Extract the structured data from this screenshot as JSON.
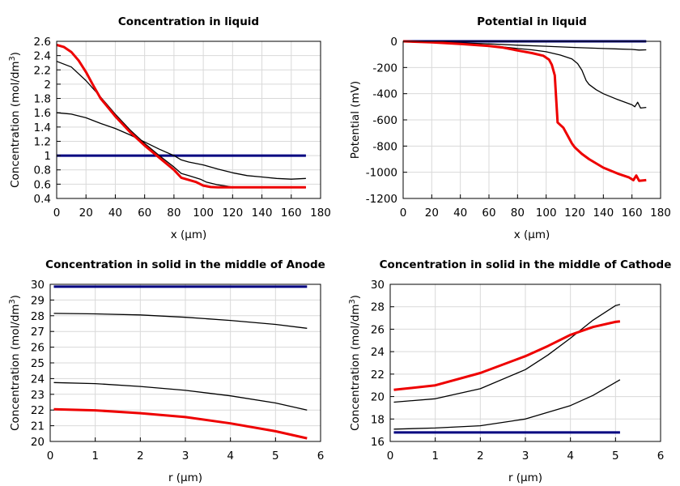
{
  "chart_data": [
    {
      "type": "line",
      "title": "Concentration in liquid",
      "xlabel": "x (µm)",
      "ylabel": "Concentration (mol/dm³)",
      "ylabel_main": "Concentration (mol/dm",
      "ylabel_sup": "3",
      "ylabel_end": ")",
      "xlim": [
        0,
        180
      ],
      "ylim": [
        0.4,
        2.6
      ],
      "xticks": [
        0,
        20,
        40,
        60,
        80,
        100,
        120,
        140,
        160,
        180
      ],
      "xtick_labels": [
        "0",
        "20",
        "40",
        "60",
        "80",
        "100",
        "120",
        "140",
        "160",
        "180"
      ],
      "yticks": [
        0.4,
        0.6,
        0.8,
        1,
        1.2,
        1.4,
        1.6,
        1.8,
        2,
        2.2,
        2.4,
        2.6
      ],
      "ytick_labels": [
        "0.4",
        "0.6",
        "0.8",
        "1",
        "1.2",
        "1.4",
        "1.6",
        "1.8",
        "2",
        "2.2",
        "2.4",
        "2.6"
      ],
      "grid": true,
      "series": [
        {
          "color": "#000080",
          "width": 3,
          "x": [
            0,
            170
          ],
          "y": [
            1.0,
            1.0
          ]
        },
        {
          "color": "#000000",
          "width": 1.3,
          "x": [
            0,
            10,
            20,
            30,
            40,
            50,
            60,
            70,
            80,
            85,
            90,
            100,
            110,
            120,
            130,
            140,
            150,
            160,
            170
          ],
          "y": [
            1.6,
            1.58,
            1.53,
            1.45,
            1.38,
            1.29,
            1.19,
            1.09,
            1.0,
            0.94,
            0.91,
            0.87,
            0.81,
            0.76,
            0.72,
            0.7,
            0.68,
            0.67,
            0.68
          ]
        },
        {
          "color": "#000000",
          "width": 1.3,
          "x": [
            0,
            10,
            20,
            30,
            40,
            50,
            60,
            70,
            80,
            85,
            90,
            98,
            102,
            110,
            120,
            130,
            140,
            150,
            160,
            170
          ],
          "y": [
            2.32,
            2.24,
            2.05,
            1.82,
            1.58,
            1.36,
            1.17,
            1.0,
            0.84,
            0.75,
            0.72,
            0.67,
            0.63,
            0.59,
            0.56,
            0.555,
            0.555,
            0.555,
            0.555,
            0.555
          ]
        },
        {
          "color": "#ee0000",
          "width": 3,
          "x": [
            0,
            5,
            10,
            15,
            20,
            25,
            30,
            40,
            50,
            60,
            70,
            80,
            85,
            95,
            100,
            105,
            110,
            120,
            130,
            140,
            150,
            160,
            170
          ],
          "y": [
            2.55,
            2.52,
            2.45,
            2.33,
            2.17,
            1.98,
            1.8,
            1.55,
            1.33,
            1.14,
            0.97,
            0.8,
            0.69,
            0.63,
            0.58,
            0.56,
            0.555,
            0.555,
            0.555,
            0.555,
            0.555,
            0.555,
            0.555
          ]
        }
      ]
    },
    {
      "type": "line",
      "title": "Potential in liquid",
      "xlabel": "x (µm)",
      "ylabel": "Potential (mV)",
      "ylabel_main": "Potential (mV)",
      "ylabel_sup": "",
      "ylabel_end": "",
      "xlim": [
        0,
        180
      ],
      "ylim": [
        -1200,
        0
      ],
      "xticks": [
        0,
        20,
        40,
        60,
        80,
        100,
        120,
        140,
        160,
        180
      ],
      "xtick_labels": [
        "0",
        "20",
        "40",
        "60",
        "80",
        "100",
        "120",
        "140",
        "160",
        "180"
      ],
      "yticks": [
        -1200,
        -1000,
        -800,
        -600,
        -400,
        -200,
        0
      ],
      "ytick_labels": [
        "-1200",
        "-1000",
        "-800",
        "-600",
        "-400",
        "-200",
        "0"
      ],
      "grid": true,
      "series": [
        {
          "color": "#000080",
          "width": 3,
          "x": [
            0,
            170
          ],
          "y": [
            0,
            0
          ]
        },
        {
          "color": "#000000",
          "width": 1.3,
          "x": [
            0,
            20,
            40,
            60,
            80,
            100,
            120,
            140,
            160,
            165,
            170
          ],
          "y": [
            0,
            -5,
            -12,
            -20,
            -30,
            -38,
            -47,
            -55,
            -62,
            -67,
            -65
          ]
        },
        {
          "color": "#000000",
          "width": 1.3,
          "x": [
            0,
            20,
            40,
            60,
            80,
            90,
            100,
            110,
            118,
            122,
            125,
            128,
            130,
            135,
            140,
            150,
            160,
            162,
            164,
            166,
            170
          ],
          "y": [
            0,
            -8,
            -18,
            -32,
            -55,
            -65,
            -80,
            -105,
            -135,
            -170,
            -220,
            -300,
            -330,
            -370,
            -400,
            -445,
            -485,
            -500,
            -465,
            -510,
            -505
          ]
        },
        {
          "color": "#ee0000",
          "width": 3,
          "x": [
            0,
            20,
            40,
            60,
            70,
            80,
            90,
            98,
            102,
            104,
            106,
            108,
            112,
            115,
            118,
            120,
            125,
            130,
            140,
            150,
            158,
            161,
            163,
            165,
            170
          ],
          "y": [
            0,
            -8,
            -20,
            -35,
            -48,
            -70,
            -90,
            -110,
            -140,
            -180,
            -260,
            -620,
            -660,
            -720,
            -780,
            -810,
            -860,
            -900,
            -965,
            -1010,
            -1040,
            -1060,
            -1025,
            -1065,
            -1060
          ]
        }
      ]
    },
    {
      "type": "line",
      "title": "Concentration in solid in the middle of Anode",
      "xlabel": "r (µm)",
      "ylabel": "Concentration (mol/dm³)",
      "ylabel_main": "Concentration (mol/dm",
      "ylabel_sup": "3",
      "ylabel_end": ")",
      "xlim": [
        0,
        6
      ],
      "ylim": [
        20,
        30
      ],
      "xticks": [
        0,
        1,
        2,
        3,
        4,
        5,
        6
      ],
      "xtick_labels": [
        "0",
        "1",
        "2",
        "3",
        "4",
        "5",
        "6"
      ],
      "yticks": [
        20,
        21,
        22,
        23,
        24,
        25,
        26,
        27,
        28,
        29,
        30
      ],
      "ytick_labels": [
        "20",
        "21",
        "22",
        "23",
        "24",
        "25",
        "26",
        "27",
        "28",
        "29",
        "30"
      ],
      "grid": true,
      "series": [
        {
          "color": "#000080",
          "width": 3,
          "x": [
            0.08,
            5.7
          ],
          "y": [
            29.85,
            29.85
          ]
        },
        {
          "color": "#000000",
          "width": 1.3,
          "x": [
            0.08,
            1,
            2,
            3,
            4,
            5,
            5.7
          ],
          "y": [
            28.15,
            28.12,
            28.05,
            27.9,
            27.7,
            27.45,
            27.2
          ]
        },
        {
          "color": "#000000",
          "width": 1.3,
          "x": [
            0.08,
            1,
            2,
            3,
            4,
            5,
            5.7
          ],
          "y": [
            23.75,
            23.68,
            23.5,
            23.25,
            22.9,
            22.45,
            22.0
          ]
        },
        {
          "color": "#ee0000",
          "width": 3,
          "x": [
            0.08,
            1,
            2,
            3,
            4,
            5,
            5.7
          ],
          "y": [
            22.05,
            21.98,
            21.8,
            21.55,
            21.15,
            20.65,
            20.2
          ]
        }
      ]
    },
    {
      "type": "line",
      "title": "Concentration in solid in the middle of Cathode",
      "xlabel": "r (µm)",
      "ylabel": "Concentration (mol/dm³)",
      "ylabel_main": "Concentration (mol/dm",
      "ylabel_sup": "3",
      "ylabel_end": ")",
      "xlim": [
        0,
        6
      ],
      "ylim": [
        16,
        30
      ],
      "xticks": [
        0,
        1,
        2,
        3,
        4,
        5,
        6
      ],
      "xtick_labels": [
        "0",
        "1",
        "2",
        "3",
        "4",
        "5",
        "6"
      ],
      "yticks": [
        16,
        18,
        20,
        22,
        24,
        26,
        28,
        30
      ],
      "ytick_labels": [
        "16",
        "18",
        "20",
        "22",
        "24",
        "26",
        "28",
        "30"
      ],
      "grid": true,
      "series": [
        {
          "color": "#000080",
          "width": 3,
          "x": [
            0.08,
            5.1
          ],
          "y": [
            16.8,
            16.8
          ]
        },
        {
          "color": "#000000",
          "width": 1.3,
          "x": [
            0.08,
            1,
            2,
            3,
            4,
            4.5,
            5.1
          ],
          "y": [
            17.1,
            17.2,
            17.4,
            18.0,
            19.2,
            20.1,
            21.5
          ]
        },
        {
          "color": "#000000",
          "width": 1.3,
          "x": [
            0.08,
            1,
            2,
            3,
            3.5,
            4,
            4.5,
            5,
            5.1
          ],
          "y": [
            19.5,
            19.8,
            20.7,
            22.4,
            23.7,
            25.2,
            26.8,
            28.1,
            28.2
          ]
        },
        {
          "color": "#ee0000",
          "width": 3,
          "x": [
            0.08,
            1,
            2,
            3,
            3.5,
            4,
            4.5,
            5,
            5.1
          ],
          "y": [
            20.6,
            21.0,
            22.1,
            23.6,
            24.5,
            25.5,
            26.2,
            26.65,
            26.7
          ]
        }
      ]
    }
  ]
}
